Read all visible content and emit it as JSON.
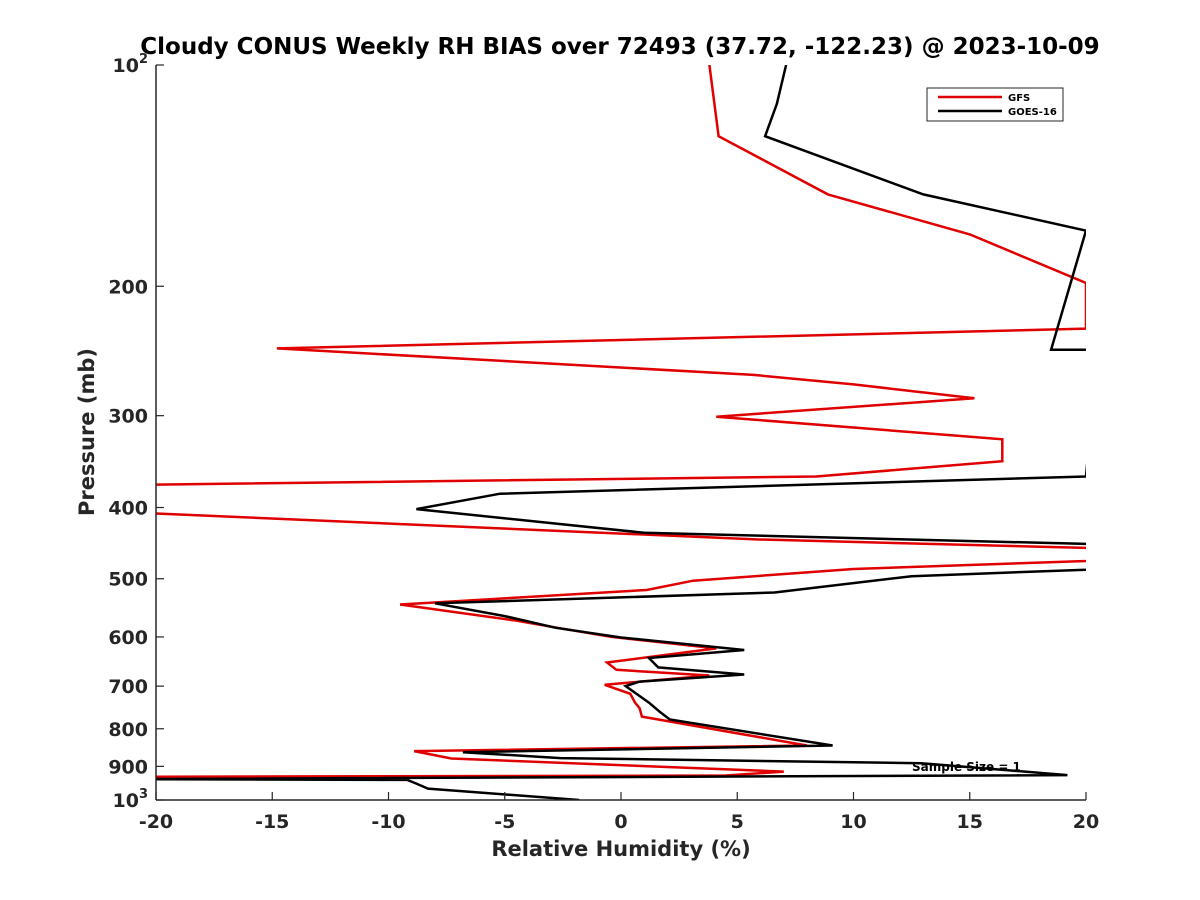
{
  "chart_data": {
    "type": "line",
    "title": "Cloudy CONUS Weekly RH BIAS over 72493 (37.72, -122.23) @ 2023-10-09",
    "xlabel": "Relative Humidity (%)",
    "ylabel": "Pressure (mb)",
    "xlim": [
      -20,
      20
    ],
    "ylim": [
      100,
      1000
    ],
    "y_scale": "log",
    "y_reversed": true,
    "grid": false,
    "legend_position": "top-right",
    "x_ticks": [
      "-20",
      "-15",
      "-10",
      "-5",
      "0",
      "5",
      "10",
      "15",
      "20"
    ],
    "y_ticks": [
      {
        "value": 100,
        "base": "10",
        "exp": "2"
      },
      {
        "value": 200,
        "label": "200"
      },
      {
        "value": 300,
        "label": "300"
      },
      {
        "value": 400,
        "label": "400"
      },
      {
        "value": 500,
        "label": "500"
      },
      {
        "value": 600,
        "label": "600"
      },
      {
        "value": 700,
        "label": "700"
      },
      {
        "value": 800,
        "label": "800"
      },
      {
        "value": 900,
        "label": "900"
      },
      {
        "value": 1000,
        "base": "10",
        "exp": "3"
      }
    ],
    "annotation": "Sample Size = 1",
    "series": [
      {
        "name": "GFS",
        "color": "#e00000",
        "points": [
          [
            3.8,
            100
          ],
          [
            4.2,
            125
          ],
          [
            8.9,
            150
          ],
          [
            15.0,
            170
          ],
          [
            20.0,
            198
          ],
          [
            20.0,
            228
          ],
          [
            21.0,
            228
          ],
          [
            -14.8,
            243
          ],
          [
            5.7,
            264
          ],
          [
            10.0,
            272
          ],
          [
            15.2,
            284
          ],
          [
            4.1,
            301
          ],
          [
            16.4,
            323
          ],
          [
            16.4,
            346
          ],
          [
            8.4,
            363
          ],
          [
            -22.0,
            373
          ],
          [
            -22.0,
            405
          ],
          [
            5.8,
            442
          ],
          [
            20.0,
            454
          ],
          [
            21.0,
            454
          ],
          [
            20.0,
            473
          ],
          [
            10.0,
            485
          ],
          [
            3.1,
            503
          ],
          [
            1.1,
            518
          ],
          [
            -9.5,
            542
          ],
          [
            -4.5,
            570
          ],
          [
            -2.9,
            582
          ],
          [
            -0.4,
            600
          ],
          [
            4.1,
            622
          ],
          [
            -0.6,
            650
          ],
          [
            -0.2,
            665
          ],
          [
            3.8,
            677
          ],
          [
            -0.7,
            697
          ],
          [
            0.4,
            717
          ],
          [
            0.6,
            737
          ],
          [
            0.8,
            750
          ],
          [
            0.9,
            770
          ],
          [
            8.0,
            843
          ],
          [
            -8.9,
            858
          ],
          [
            -7.3,
            878
          ],
          [
            7.0,
            915
          ],
          [
            4.5,
            926
          ],
          [
            -22.0,
            930
          ]
        ]
      },
      {
        "name": "GOES-16",
        "color": "#000000",
        "points": [
          [
            7.1,
            100
          ],
          [
            6.7,
            113
          ],
          [
            6.2,
            125
          ],
          [
            13.0,
            150
          ],
          [
            20.0,
            168
          ],
          [
            18.5,
            244
          ],
          [
            20.5,
            244
          ],
          [
            20.0,
            363
          ],
          [
            -5.2,
            383
          ],
          [
            -8.8,
            402
          ],
          [
            1.0,
            433
          ],
          [
            22.0,
            450
          ],
          [
            20.0,
            486
          ],
          [
            12.5,
            496
          ],
          [
            6.6,
            522
          ],
          [
            -8.0,
            540
          ],
          [
            -5.0,
            562
          ],
          [
            -2.8,
            583
          ],
          [
            0.0,
            601
          ],
          [
            5.3,
            625
          ],
          [
            1.2,
            641
          ],
          [
            1.6,
            660
          ],
          [
            5.3,
            675
          ],
          [
            0.8,
            690
          ],
          [
            0.2,
            700
          ],
          [
            1.2,
            737
          ],
          [
            1.7,
            760
          ],
          [
            2.1,
            777
          ],
          [
            9.1,
            843
          ],
          [
            -6.8,
            861
          ],
          [
            -2.6,
            877
          ],
          [
            12.9,
            891
          ],
          [
            19.2,
            925
          ],
          [
            -22.0,
            937
          ],
          [
            -9.2,
            939
          ],
          [
            -8.8,
            950
          ],
          [
            -8.3,
            965
          ],
          [
            -1.8,
            1000
          ]
        ]
      }
    ]
  }
}
